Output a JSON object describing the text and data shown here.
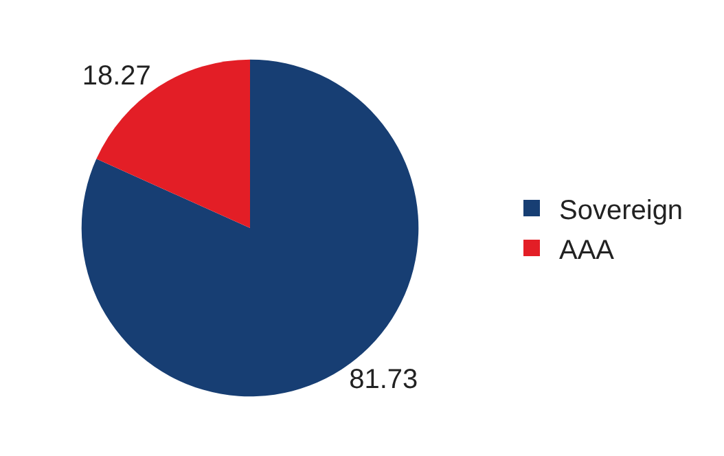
{
  "chart_data": {
    "type": "pie",
    "categories": [
      "Sovereign",
      "AAA"
    ],
    "values": [
      81.73,
      18.27
    ],
    "colors": [
      "#173e73",
      "#e31e26"
    ],
    "data_labels": true,
    "legend": "right"
  }
}
